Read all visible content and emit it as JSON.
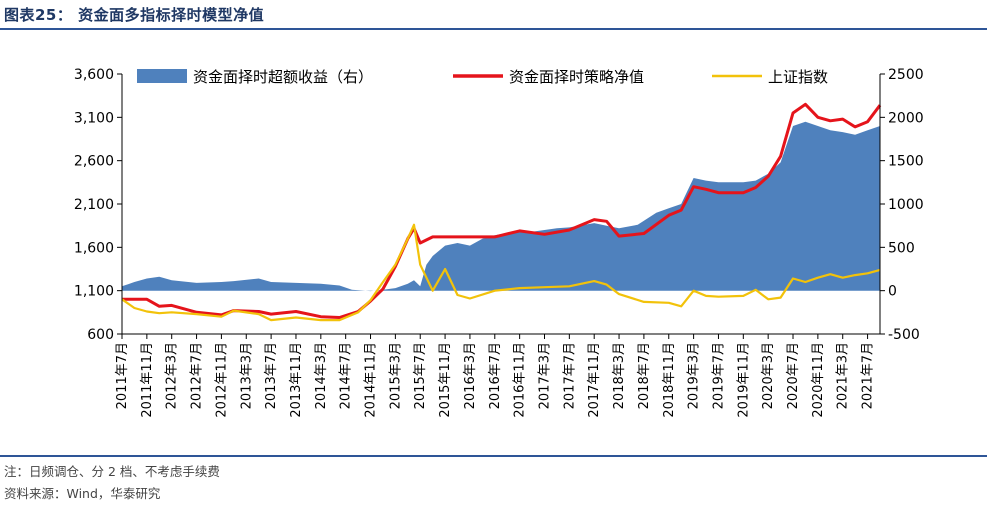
{
  "header": {
    "title": "图表25：  资金面多指标择时模型净值"
  },
  "footer": {
    "note": "注：日频调仓、分 2 档、不考虑手续费",
    "source": "资料来源：Wind，华泰研究"
  },
  "chart_data": {
    "type": "line",
    "x_ticks": [
      "2011年7月",
      "2011年11月",
      "2012年3月",
      "2012年7月",
      "2012年11月",
      "2013年3月",
      "2013年7月",
      "2013年11月",
      "2014年3月",
      "2014年7月",
      "2014年11月",
      "2015年3月",
      "2015年7月",
      "2015年11月",
      "2016年3月",
      "2016年7月",
      "2016年11月",
      "2017年3月",
      "2017年7月",
      "2017年11月",
      "2018年3月",
      "2018年7月",
      "2018年11月",
      "2019年3月",
      "2019年7月",
      "2019年11月",
      "2020年3月",
      "2020年7月",
      "2020年11月",
      "2021年3月",
      "2021年7月"
    ],
    "y_left": {
      "ticks": [
        "600",
        "1,100",
        "1,600",
        "2,100",
        "2,600",
        "3,100",
        "3,600"
      ],
      "range": [
        600,
        3600
      ]
    },
    "y_right": {
      "ticks": [
        "-500",
        "0",
        "500",
        "1000",
        "1500",
        "2000",
        "2500"
      ],
      "range": [
        -500,
        2500
      ]
    },
    "x_range": [
      "2011-07",
      "2021-09"
    ],
    "legend": {
      "placement": "top"
    },
    "grid": false,
    "series": [
      {
        "name": "资金面择时超额收益（右）",
        "type": "area",
        "axis": "right",
        "color": "#4f81bd",
        "points": [
          [
            "2011-07",
            50
          ],
          [
            "2011-09",
            100
          ],
          [
            "2011-11",
            140
          ],
          [
            "2012-01",
            160
          ],
          [
            "2012-03",
            120
          ],
          [
            "2012-07",
            90
          ],
          [
            "2012-11",
            100
          ],
          [
            "2013-01",
            110
          ],
          [
            "2013-05",
            140
          ],
          [
            "2013-07",
            100
          ],
          [
            "2013-11",
            90
          ],
          [
            "2014-03",
            80
          ],
          [
            "2014-06",
            60
          ],
          [
            "2014-08",
            10
          ],
          [
            "2014-11",
            -5
          ],
          [
            "2015-01",
            10
          ],
          [
            "2015-03",
            30
          ],
          [
            "2015-05",
            80
          ],
          [
            "2015-06",
            120
          ],
          [
            "2015-07",
            50
          ],
          [
            "2015-08",
            300
          ],
          [
            "2015-09",
            400
          ],
          [
            "2015-11",
            520
          ],
          [
            "2016-01",
            550
          ],
          [
            "2016-03",
            520
          ],
          [
            "2016-05",
            600
          ],
          [
            "2016-07",
            640
          ],
          [
            "2016-11",
            690
          ],
          [
            "2017-01",
            680
          ],
          [
            "2017-05",
            720
          ],
          [
            "2017-07",
            730
          ],
          [
            "2017-11",
            780
          ],
          [
            "2018-01",
            750
          ],
          [
            "2018-03",
            720
          ],
          [
            "2018-06",
            760
          ],
          [
            "2018-09",
            900
          ],
          [
            "2018-11",
            950
          ],
          [
            "2019-01",
            1000
          ],
          [
            "2019-03",
            1300
          ],
          [
            "2019-05",
            1270
          ],
          [
            "2019-07",
            1250
          ],
          [
            "2019-11",
            1250
          ],
          [
            "2020-01",
            1270
          ],
          [
            "2020-03",
            1350
          ],
          [
            "2020-05",
            1480
          ],
          [
            "2020-07",
            1900
          ],
          [
            "2020-09",
            1950
          ],
          [
            "2020-11",
            1900
          ],
          [
            "2021-01",
            1850
          ],
          [
            "2021-03",
            1830
          ],
          [
            "2021-05",
            1800
          ],
          [
            "2021-07",
            1850
          ],
          [
            "2021-09",
            1900
          ]
        ]
      },
      {
        "name": "资金面择时策略净值",
        "type": "line",
        "axis": "left",
        "color": "#e5141b",
        "points": [
          [
            "2011-07",
            1000
          ],
          [
            "2011-11",
            1000
          ],
          [
            "2012-01",
            920
          ],
          [
            "2012-03",
            930
          ],
          [
            "2012-07",
            850
          ],
          [
            "2012-11",
            820
          ],
          [
            "2013-01",
            870
          ],
          [
            "2013-05",
            860
          ],
          [
            "2013-07",
            830
          ],
          [
            "2013-11",
            860
          ],
          [
            "2014-03",
            800
          ],
          [
            "2014-06",
            790
          ],
          [
            "2014-09",
            860
          ],
          [
            "2014-11",
            980
          ],
          [
            "2015-01",
            1120
          ],
          [
            "2015-03",
            1380
          ],
          [
            "2015-05",
            1700
          ],
          [
            "2015-06",
            1820
          ],
          [
            "2015-07",
            1650
          ],
          [
            "2015-09",
            1720
          ],
          [
            "2015-11",
            1720
          ],
          [
            "2016-03",
            1720
          ],
          [
            "2016-07",
            1720
          ],
          [
            "2016-11",
            1790
          ],
          [
            "2017-03",
            1750
          ],
          [
            "2017-07",
            1800
          ],
          [
            "2017-11",
            1920
          ],
          [
            "2018-01",
            1900
          ],
          [
            "2018-03",
            1730
          ],
          [
            "2018-07",
            1760
          ],
          [
            "2018-11",
            1970
          ],
          [
            "2019-01",
            2030
          ],
          [
            "2019-03",
            2300
          ],
          [
            "2019-05",
            2270
          ],
          [
            "2019-07",
            2230
          ],
          [
            "2019-11",
            2230
          ],
          [
            "2020-01",
            2290
          ],
          [
            "2020-03",
            2420
          ],
          [
            "2020-05",
            2650
          ],
          [
            "2020-07",
            3150
          ],
          [
            "2020-09",
            3250
          ],
          [
            "2020-11",
            3100
          ],
          [
            "2021-01",
            3060
          ],
          [
            "2021-03",
            3080
          ],
          [
            "2021-05",
            2990
          ],
          [
            "2021-07",
            3050
          ],
          [
            "2021-09",
            3240
          ]
        ]
      },
      {
        "name": "上证指数",
        "type": "line",
        "axis": "left",
        "color": "#f2c20a",
        "points": [
          [
            "2011-07",
            1000
          ],
          [
            "2011-09",
            900
          ],
          [
            "2011-11",
            860
          ],
          [
            "2012-01",
            840
          ],
          [
            "2012-03",
            850
          ],
          [
            "2012-07",
            830
          ],
          [
            "2012-11",
            800
          ],
          [
            "2013-01",
            870
          ],
          [
            "2013-05",
            830
          ],
          [
            "2013-07",
            760
          ],
          [
            "2013-11",
            790
          ],
          [
            "2014-03",
            760
          ],
          [
            "2014-06",
            760
          ],
          [
            "2014-09",
            850
          ],
          [
            "2014-11",
            990
          ],
          [
            "2015-01",
            1200
          ],
          [
            "2015-03",
            1400
          ],
          [
            "2015-05",
            1700
          ],
          [
            "2015-06",
            1860
          ],
          [
            "2015-07",
            1400
          ],
          [
            "2015-09",
            1100
          ],
          [
            "2015-11",
            1350
          ],
          [
            "2016-01",
            1050
          ],
          [
            "2016-03",
            1010
          ],
          [
            "2016-07",
            1100
          ],
          [
            "2016-11",
            1130
          ],
          [
            "2017-03",
            1140
          ],
          [
            "2017-07",
            1150
          ],
          [
            "2017-11",
            1210
          ],
          [
            "2018-01",
            1170
          ],
          [
            "2018-03",
            1060
          ],
          [
            "2018-07",
            970
          ],
          [
            "2018-11",
            960
          ],
          [
            "2019-01",
            920
          ],
          [
            "2019-03",
            1100
          ],
          [
            "2019-05",
            1040
          ],
          [
            "2019-07",
            1030
          ],
          [
            "2019-11",
            1040
          ],
          [
            "2020-01",
            1110
          ],
          [
            "2020-03",
            1000
          ],
          [
            "2020-05",
            1020
          ],
          [
            "2020-07",
            1240
          ],
          [
            "2020-09",
            1200
          ],
          [
            "2020-11",
            1250
          ],
          [
            "2021-01",
            1290
          ],
          [
            "2021-03",
            1250
          ],
          [
            "2021-05",
            1280
          ],
          [
            "2021-07",
            1300
          ],
          [
            "2021-09",
            1340
          ]
        ]
      }
    ]
  }
}
